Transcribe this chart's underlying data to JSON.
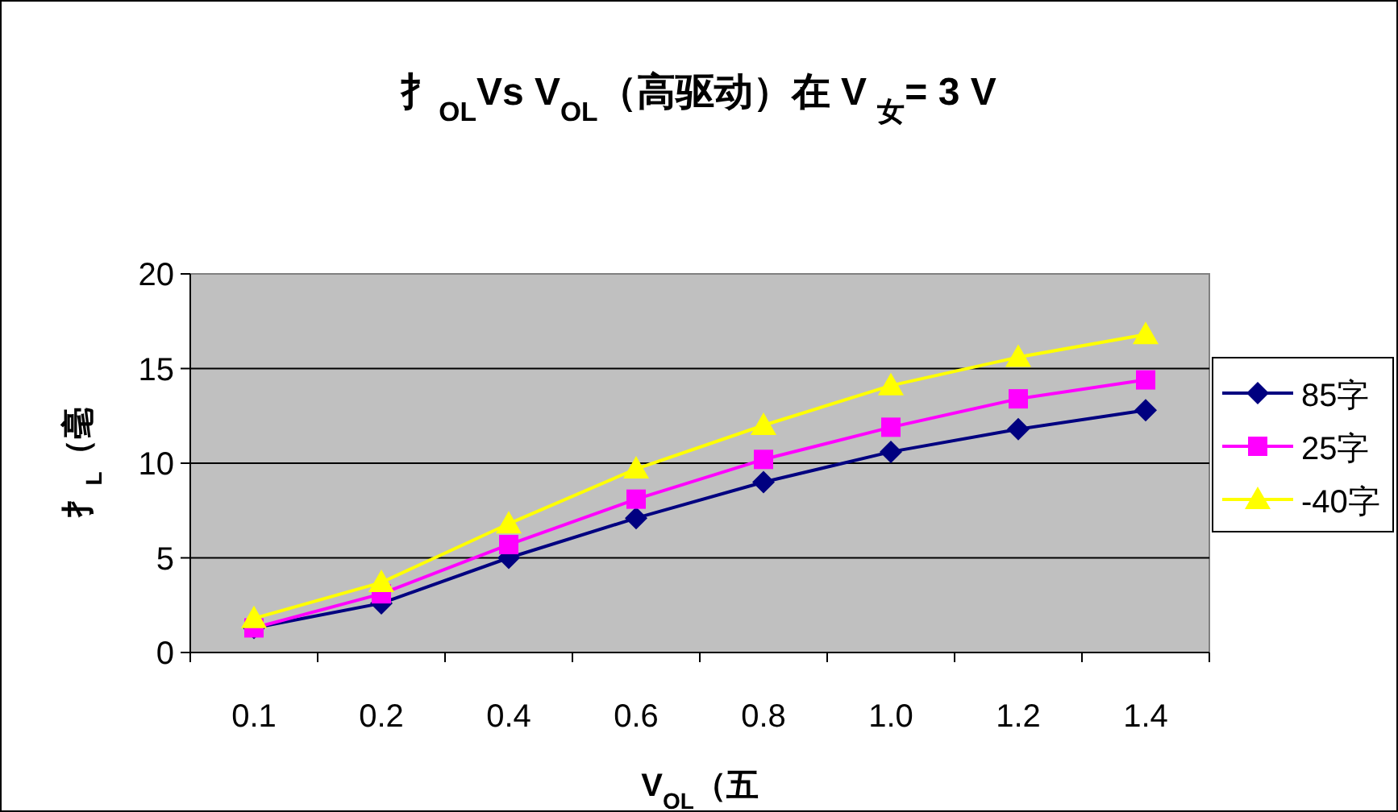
{
  "chart_data": {
    "type": "line",
    "title": "扌$_{OL}$Vs V$_{OL}$（高驱动）在 V $_{女}$= 3 V",
    "xlabel": "V$_{OL}$（五",
    "ylabel": "扌$_{L}$（毫",
    "categories": [
      "0.1",
      "0.2",
      "0.4",
      "0.6",
      "0.8",
      "1.0",
      "1.2",
      "1.4"
    ],
    "series": [
      {
        "name": "85字",
        "color": "#000080",
        "marker": "diamond",
        "values": [
          1.3,
          2.6,
          5.0,
          7.1,
          9.0,
          10.6,
          11.8,
          12.8
        ]
      },
      {
        "name": "25字",
        "color": "#ff00ff",
        "marker": "square",
        "values": [
          1.3,
          3.1,
          5.7,
          8.1,
          10.2,
          11.9,
          13.4,
          14.4
        ]
      },
      {
        "name": "-40字",
        "color": "#ffff00",
        "marker": "triangle",
        "values": [
          1.8,
          3.7,
          6.8,
          9.7,
          12.0,
          14.1,
          15.6,
          16.8
        ]
      }
    ],
    "ylim": [
      0,
      20
    ],
    "yticks": [
      0,
      5,
      10,
      15,
      20
    ],
    "grid": "y",
    "legend": "right",
    "line_style": "solid"
  }
}
